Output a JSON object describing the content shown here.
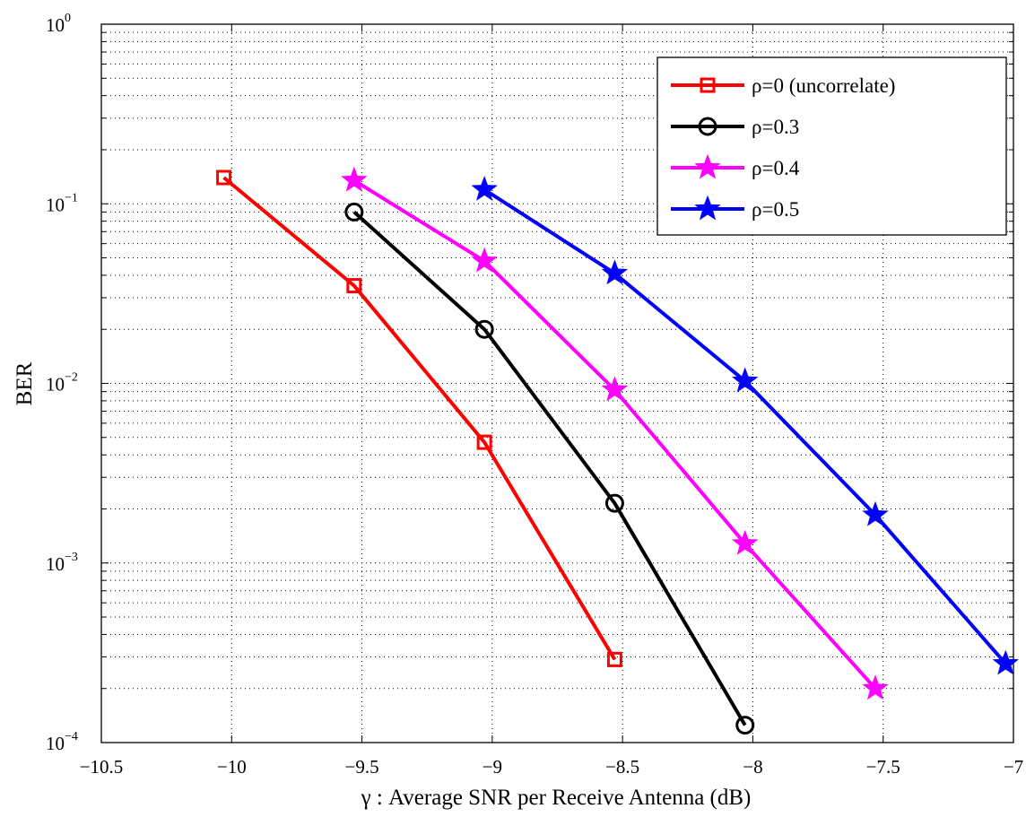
{
  "chart_data": {
    "type": "line",
    "title": "",
    "xlabel": "γ :  Average SNR per Receive Antenna (dB)",
    "ylabel": "BER",
    "yscale": "log",
    "xlim": [
      -10.5,
      -7
    ],
    "ylim": [
      0.0001,
      1
    ],
    "grid": true,
    "legend_position": "top-right",
    "x_ticks": [
      -10.5,
      -10,
      -9.5,
      -9,
      -8.5,
      -8,
      -7.5,
      -7
    ],
    "x_tick_labels": [
      "−10.5",
      "−10",
      "−9.5",
      "−9",
      "−8.5",
      "−8",
      "−7.5",
      "−7"
    ],
    "y_ticks": [
      {
        "value": 1,
        "base": "10",
        "exp": "0"
      },
      {
        "value": 0.1,
        "base": "10",
        "exp": "−1"
      },
      {
        "value": 0.01,
        "base": "10",
        "exp": "−2"
      },
      {
        "value": 0.001,
        "base": "10",
        "exp": "−3"
      },
      {
        "value": 0.0001,
        "base": "10",
        "exp": "−4"
      }
    ],
    "series": [
      {
        "name": "ρ=0 (uncorrelate)",
        "color": "#ff0000",
        "marker": "square",
        "x": [
          -10.03,
          -9.53,
          -9.03,
          -8.53
        ],
        "y": [
          0.14,
          0.035,
          0.0047,
          0.00029
        ]
      },
      {
        "name": "ρ=0.3",
        "color": "#000000",
        "marker": "circle",
        "x": [
          -9.53,
          -9.03,
          -8.53,
          -8.03
        ],
        "y": [
          0.09,
          0.02,
          0.00215,
          0.000125
        ]
      },
      {
        "name": "ρ=0.4",
        "color": "#ff00ff",
        "marker": "star",
        "x": [
          -9.53,
          -9.03,
          -8.53,
          -8.03,
          -7.53
        ],
        "y": [
          0.135,
          0.048,
          0.0092,
          0.00128,
          0.0002
        ]
      },
      {
        "name": "ρ=0.5",
        "color": "#0000ff",
        "marker": "star",
        "x": [
          -9.03,
          -8.53,
          -8.03,
          -7.53,
          -7.03
        ],
        "y": [
          0.12,
          0.041,
          0.0103,
          0.00185,
          0.000275
        ]
      }
    ]
  }
}
